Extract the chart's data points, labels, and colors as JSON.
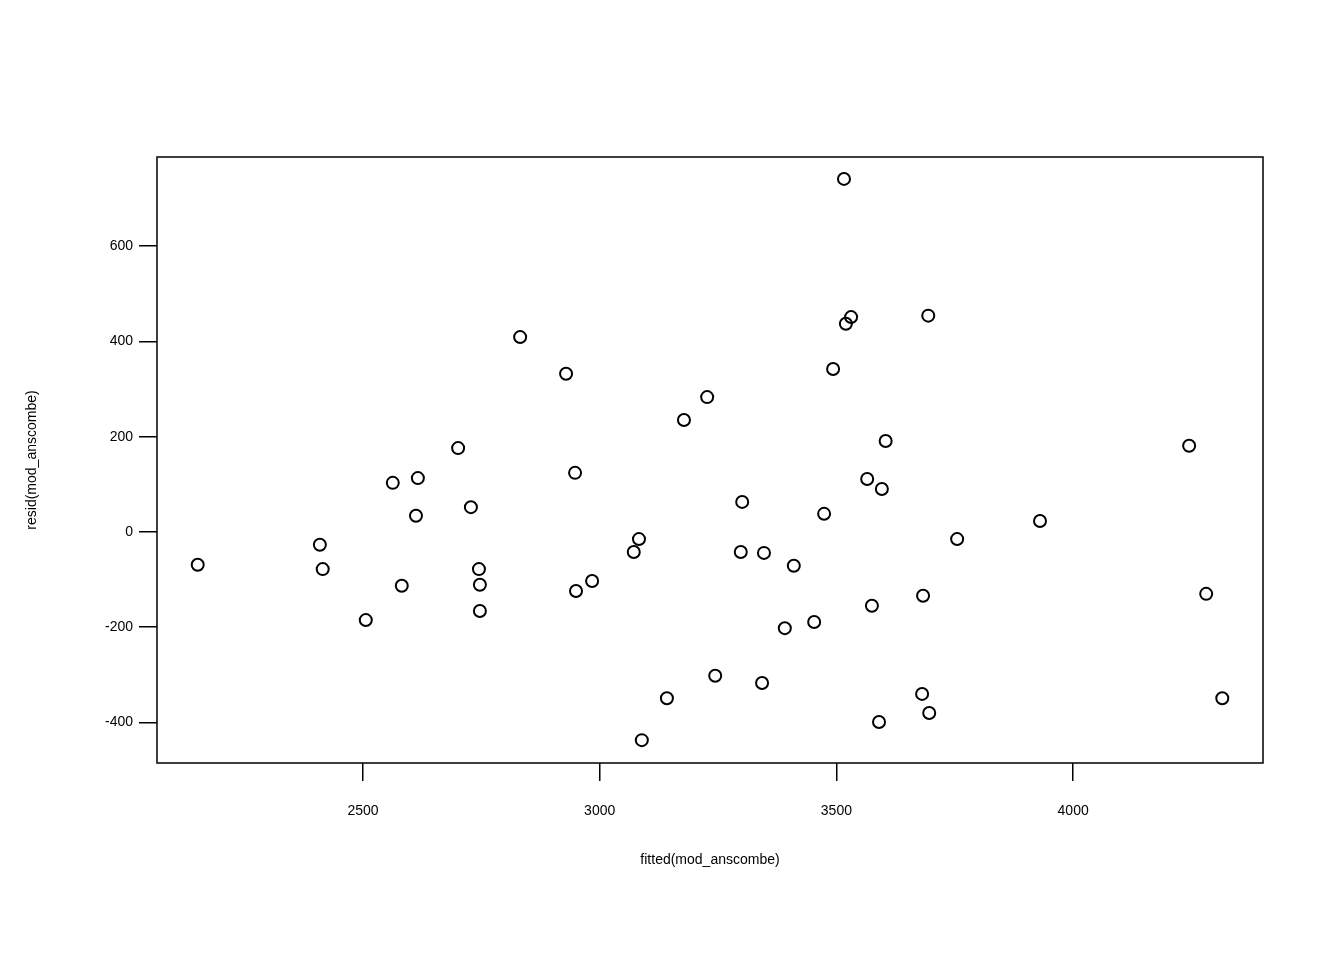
{
  "chart_data": {
    "type": "scatter",
    "xlabel": "fitted(mod_anscombe)",
    "ylabel": "resid(mod_anscombe)",
    "x": [
      2151,
      2409,
      2415,
      2506,
      2563,
      2582,
      2616,
      2612,
      2701,
      2728,
      2745,
      2747,
      2747,
      2832,
      2929,
      2948,
      2950,
      2984,
      3072,
      3083,
      3089,
      3142,
      3178,
      3227,
      3244,
      3301,
      3298,
      3343,
      3347,
      3391,
      3410,
      3453,
      3474,
      3493,
      3516,
      3520,
      3531,
      3565,
      3575,
      3590,
      3596,
      3604,
      3681,
      3683,
      3694,
      3696,
      3755,
      3930,
      4245,
      4281,
      4315
    ],
    "series": [
      {
        "color": "#000000",
        "values": [
          -69,
          -27,
          -78,
          -185,
          103,
          -113,
          113,
          34,
          176,
          52,
          -78,
          -111,
          -166,
          409,
          332,
          124,
          -124,
          -103,
          -42,
          -15,
          -437,
          -349,
          235,
          283,
          -302,
          63,
          -42,
          -317,
          -44,
          -202,
          -71,
          -189,
          38,
          342,
          741,
          437,
          451,
          111,
          -155,
          -399,
          90,
          191,
          -340,
          -134,
          454,
          -380,
          -15,
          23,
          181,
          -130,
          -349
        ]
      }
    ],
    "xlim": [
      2065,
      4401
    ],
    "ylim": [
      -485,
      787
    ],
    "xticks": [
      2500,
      3000,
      3500,
      4000
    ],
    "yticks": [
      -400,
      -200,
      0,
      200,
      400,
      600
    ],
    "grid": false,
    "legend": false,
    "marker": "circle"
  }
}
